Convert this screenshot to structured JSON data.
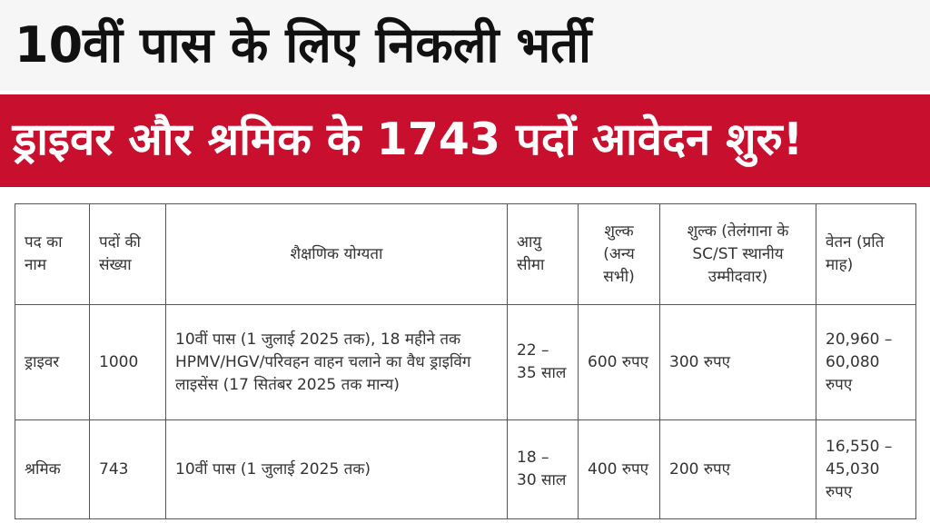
{
  "headline": {
    "title": "10वीं पास के लिए निकली भर्ती"
  },
  "banner": {
    "text": "ड्राइवर और श्रमिक के 1743 पदों आवेदन शुरु!"
  },
  "table": {
    "headers": [
      "पद का नाम",
      "पदों की संख्या",
      "शैक्षणिक योग्यता",
      "आयु सीमा",
      "शुल्क (अन्य सभी)",
      "शुल्क (तेलंगाना के SC/ST स्थानीय उम्मीदवार)",
      "वेतन (प्रति माह)"
    ],
    "rows": [
      {
        "post": "ड्राइवर",
        "count": "1000",
        "qualification": "10वीं पास (1 जुलाई 2025 तक), 18 महीने तक HPMV/HGV/परिवहन वाहन चलाने का वैध ड्राइविंग लाइसेंस (17 सितंबर 2025 तक मान्य)",
        "age": "22 – 35 साल",
        "fee_general": "600 रुपए",
        "fee_scst": "300 रुपए",
        "salary": "20,960 – 60,080 रुपए"
      },
      {
        "post": "श्रमिक",
        "count": "743",
        "qualification": "10वीं पास (1 जुलाई 2025 तक)",
        "age": "18 – 30 साल",
        "fee_general": "400 रुपए",
        "fee_scst": "200 रुपए",
        "salary": "16,550 – 45,030 रुपए"
      }
    ]
  }
}
